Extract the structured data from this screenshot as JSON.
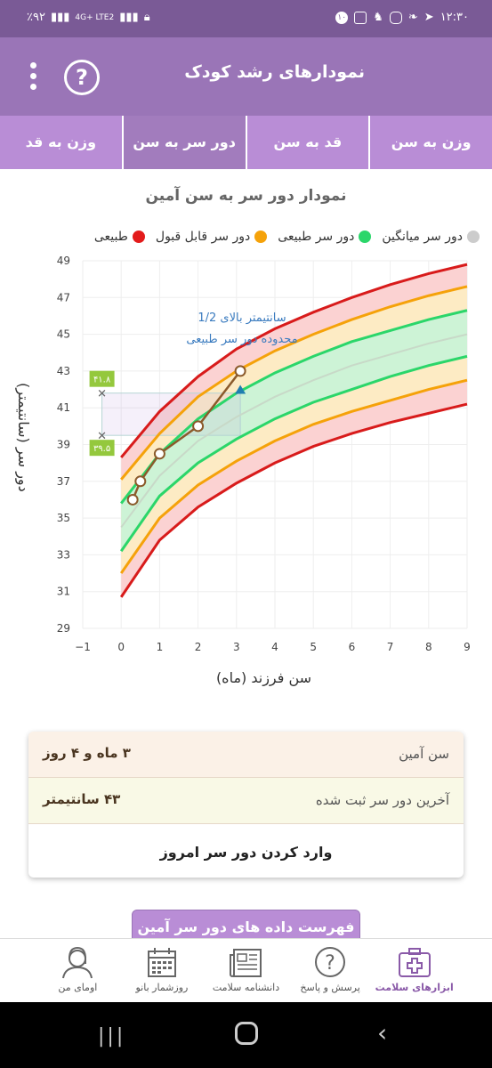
{
  "status_bar": {
    "time": "۱۲:۳۰",
    "battery": "٪۹۲",
    "network": "4G+ LTE2",
    "notif_count": "۱۰"
  },
  "app_bar": {
    "title": "نمودارهای رشد کودک",
    "help_symbol": "?"
  },
  "tabs": [
    {
      "label": "وزن به سن",
      "active": false
    },
    {
      "label": "قد به سن",
      "active": false
    },
    {
      "label": "دور سر به سن",
      "active": true
    },
    {
      "label": "وزن به قد",
      "active": false
    }
  ],
  "chart_title": "نمودار دور سر به سن آمین",
  "legend": [
    {
      "label": "طبیعی",
      "color": "#e31b1b"
    },
    {
      "label": "دور سر قابل قبول",
      "color": "#f5a20a"
    },
    {
      "label": "دور سر طبیعی",
      "color": "#2bd66a"
    },
    {
      "label": "دور سر میانگین",
      "color": "#cccccc"
    }
  ],
  "chart_data": {
    "type": "line",
    "xlabel": "سن فرزند (ماه)",
    "ylabel": "دور سر (سانتیمتر)",
    "xlim": [
      -1,
      9
    ],
    "ylim": [
      29,
      49
    ],
    "x_ticks": [
      "−1",
      "0",
      "1",
      "2",
      "3",
      "4",
      "5",
      "6",
      "7",
      "8",
      "9"
    ],
    "y_ticks": [
      "29",
      "31",
      "33",
      "35",
      "37",
      "39",
      "41",
      "43",
      "45",
      "47",
      "49"
    ],
    "reference_x": [
      0,
      1,
      2,
      3,
      4,
      5,
      6,
      7,
      8,
      9
    ],
    "reference_series": [
      {
        "name": "red_low",
        "color": "#d81b1b",
        "values": [
          30.7,
          33.8,
          35.6,
          36.9,
          38.0,
          38.9,
          39.6,
          40.2,
          40.7,
          41.2
        ]
      },
      {
        "name": "orange_low",
        "color": "#f5a20a",
        "values": [
          32.0,
          35.0,
          36.8,
          38.1,
          39.2,
          40.1,
          40.8,
          41.4,
          42.0,
          42.5
        ]
      },
      {
        "name": "green_low",
        "color": "#2bd66a",
        "values": [
          33.2,
          36.2,
          38.0,
          39.3,
          40.4,
          41.3,
          42.0,
          42.7,
          43.3,
          43.8
        ]
      },
      {
        "name": "median",
        "color": "#c8d9c8",
        "values": [
          34.5,
          37.3,
          39.2,
          40.5,
          41.6,
          42.5,
          43.3,
          43.9,
          44.5,
          45.0
        ]
      },
      {
        "name": "green_high",
        "color": "#2bd66a",
        "values": [
          35.8,
          38.5,
          40.4,
          41.8,
          42.9,
          43.8,
          44.6,
          45.2,
          45.8,
          46.3
        ]
      },
      {
        "name": "orange_high",
        "color": "#f5a20a",
        "values": [
          37.1,
          39.6,
          41.6,
          43.0,
          44.1,
          45.0,
          45.8,
          46.5,
          47.1,
          47.6
        ]
      },
      {
        "name": "red_high",
        "color": "#d81b1b",
        "values": [
          38.3,
          40.8,
          42.7,
          44.2,
          45.3,
          46.2,
          47.0,
          47.7,
          48.3,
          48.8
        ]
      }
    ],
    "child_series": {
      "color": "#8b5a2b",
      "x": [
        0.3,
        0.5,
        1.0,
        2.0,
        3.1
      ],
      "values": [
        36.0,
        37.0,
        38.5,
        40.0,
        43.0
      ]
    },
    "normal_range_marker": {
      "x": 3.1,
      "value": 42.0,
      "low": 39.5,
      "high": 41.8
    },
    "range_labels": {
      "high": "۴۱.۸",
      "low": "۳۹.۵"
    },
    "annotation": [
      "1/2 سانتیمتر بالای",
      "محدوده دور سر طبیعی"
    ]
  },
  "info": {
    "age_label": "سن آمین",
    "age_value": "۳ ماه و ۴ روز",
    "last_label": "آخرین دور سر ثبت شده",
    "last_value": "۴۳ سانتیمتر",
    "enter_button": "وارد کردن دور سر امروز"
  },
  "list_button": "فهرست داده های دور سر آمین",
  "bottom_nav": [
    {
      "label": "ابزارهای سلامت",
      "icon": "medical-kit-icon",
      "active": true
    },
    {
      "label": "پرسش و پاسخ",
      "icon": "question-icon",
      "active": false
    },
    {
      "label": "دانشنامه سلامت",
      "icon": "newspaper-icon",
      "active": false
    },
    {
      "label": "روزشمار بانو",
      "icon": "calendar-icon",
      "active": false
    },
    {
      "label": "اومای من",
      "icon": "profile-icon",
      "active": false
    }
  ]
}
